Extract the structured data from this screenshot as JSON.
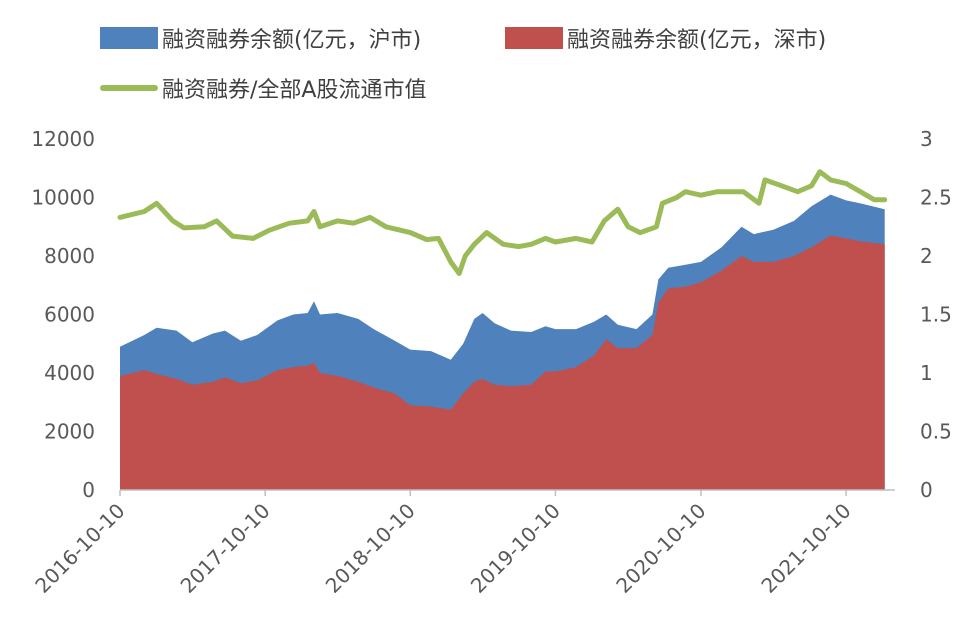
{
  "chart_data": {
    "type": "area",
    "x_labels": [
      "2016-10-10",
      "2017-10-10",
      "2018-10-10",
      "2019-10-10",
      "2020-10-10",
      "2021-10-10"
    ],
    "y_left": {
      "ticks": [
        "0",
        "2000",
        "4000",
        "6000",
        "8000",
        "10000",
        "12000"
      ],
      "min": 0,
      "max": 12000
    },
    "y_right": {
      "ticks": [
        "0",
        "0.5",
        "1",
        "1.5",
        "2",
        "2.5",
        "3"
      ],
      "min": 0,
      "max": 3
    },
    "x_range": [
      "2016-10-10",
      "2022-02-10"
    ],
    "series": [
      {
        "name": "融资融券余额(亿元，沪市)",
        "type": "area",
        "axis": "left",
        "color": "#4f81bd",
        "points": [
          [
            "2016-10-10",
            4900
          ],
          [
            "2016-12-10",
            5300
          ],
          [
            "2017-01-10",
            5550
          ],
          [
            "2017-03-01",
            5450
          ],
          [
            "2017-04-10",
            5050
          ],
          [
            "2017-06-01",
            5350
          ],
          [
            "2017-07-01",
            5450
          ],
          [
            "2017-08-10",
            5100
          ],
          [
            "2017-09-20",
            5300
          ],
          [
            "2017-11-10",
            5800
          ],
          [
            "2017-12-20",
            6000
          ],
          [
            "2018-01-25",
            6050
          ],
          [
            "2018-02-10",
            6450
          ],
          [
            "2018-02-25",
            6000
          ],
          [
            "2018-04-10",
            6050
          ],
          [
            "2018-06-01",
            5850
          ],
          [
            "2018-07-10",
            5500
          ],
          [
            "2018-09-01",
            5100
          ],
          [
            "2018-10-10",
            4800
          ],
          [
            "2018-12-01",
            4750
          ],
          [
            "2019-01-20",
            4450
          ],
          [
            "2019-02-20",
            5000
          ],
          [
            "2019-03-20",
            5850
          ],
          [
            "2019-04-10",
            6050
          ],
          [
            "2019-05-10",
            5700
          ],
          [
            "2019-06-20",
            5450
          ],
          [
            "2019-08-10",
            5400
          ],
          [
            "2019-09-15",
            5600
          ],
          [
            "2019-10-10",
            5500
          ],
          [
            "2019-12-01",
            5500
          ],
          [
            "2020-01-15",
            5750
          ],
          [
            "2020-02-15",
            6000
          ],
          [
            "2020-03-15",
            5650
          ],
          [
            "2020-05-01",
            5500
          ],
          [
            "2020-06-10",
            6000
          ],
          [
            "2020-06-25",
            7200
          ],
          [
            "2020-07-20",
            7600
          ],
          [
            "2020-09-01",
            7700
          ],
          [
            "2020-10-10",
            7800
          ],
          [
            "2020-12-01",
            8300
          ],
          [
            "2021-01-20",
            9000
          ],
          [
            "2021-02-20",
            8750
          ],
          [
            "2021-04-10",
            8900
          ],
          [
            "2021-06-01",
            9200
          ],
          [
            "2021-07-15",
            9700
          ],
          [
            "2021-09-01",
            10100
          ],
          [
            "2021-10-10",
            9900
          ],
          [
            "2021-11-15",
            9800
          ],
          [
            "2022-01-15",
            9600
          ]
        ]
      },
      {
        "name": "融资融券余额(亿元，深市)",
        "type": "area",
        "axis": "left",
        "color": "#c0504d",
        "points": [
          [
            "2016-10-10",
            3900
          ],
          [
            "2016-12-10",
            4100
          ],
          [
            "2017-01-15",
            3950
          ],
          [
            "2017-03-01",
            3800
          ],
          [
            "2017-04-10",
            3600
          ],
          [
            "2017-06-01",
            3700
          ],
          [
            "2017-07-01",
            3850
          ],
          [
            "2017-08-10",
            3650
          ],
          [
            "2017-09-20",
            3750
          ],
          [
            "2017-11-10",
            4100
          ],
          [
            "2017-12-20",
            4200
          ],
          [
            "2018-01-25",
            4250
          ],
          [
            "2018-02-10",
            4350
          ],
          [
            "2018-02-25",
            4000
          ],
          [
            "2018-04-10",
            3900
          ],
          [
            "2018-06-01",
            3700
          ],
          [
            "2018-07-10",
            3500
          ],
          [
            "2018-09-01",
            3300
          ],
          [
            "2018-10-10",
            2900
          ],
          [
            "2018-12-01",
            2850
          ],
          [
            "2019-01-20",
            2750
          ],
          [
            "2019-02-20",
            3300
          ],
          [
            "2019-03-20",
            3700
          ],
          [
            "2019-04-10",
            3800
          ],
          [
            "2019-05-10",
            3600
          ],
          [
            "2019-06-20",
            3550
          ],
          [
            "2019-08-10",
            3600
          ],
          [
            "2019-09-15",
            4050
          ],
          [
            "2019-10-10",
            4050
          ],
          [
            "2019-12-01",
            4200
          ],
          [
            "2020-01-15",
            4600
          ],
          [
            "2020-02-15",
            5150
          ],
          [
            "2020-03-15",
            4850
          ],
          [
            "2020-05-01",
            4850
          ],
          [
            "2020-06-10",
            5300
          ],
          [
            "2020-06-25",
            6400
          ],
          [
            "2020-07-20",
            6900
          ],
          [
            "2020-09-01",
            6950
          ],
          [
            "2020-10-10",
            7100
          ],
          [
            "2020-12-01",
            7500
          ],
          [
            "2021-01-20",
            8000
          ],
          [
            "2021-02-20",
            7800
          ],
          [
            "2021-04-10",
            7800
          ],
          [
            "2021-06-01",
            8000
          ],
          [
            "2021-07-15",
            8300
          ],
          [
            "2021-09-01",
            8700
          ],
          [
            "2021-10-10",
            8600
          ],
          [
            "2021-11-15",
            8500
          ],
          [
            "2022-01-15",
            8400
          ]
        ]
      },
      {
        "name": "融资融券/全部A股流通市值",
        "type": "line",
        "axis": "right",
        "color": "#9bbb59",
        "points": [
          [
            "2016-10-10",
            2.33
          ],
          [
            "2016-12-10",
            2.38
          ],
          [
            "2017-01-10",
            2.45
          ],
          [
            "2017-02-20",
            2.3
          ],
          [
            "2017-03-20",
            2.24
          ],
          [
            "2017-05-10",
            2.25
          ],
          [
            "2017-06-10",
            2.3
          ],
          [
            "2017-07-20",
            2.17
          ],
          [
            "2017-09-10",
            2.15
          ],
          [
            "2017-10-20",
            2.22
          ],
          [
            "2017-12-10",
            2.28
          ],
          [
            "2018-01-25",
            2.3
          ],
          [
            "2018-02-10",
            2.38
          ],
          [
            "2018-02-25",
            2.25
          ],
          [
            "2018-04-10",
            2.3
          ],
          [
            "2018-05-20",
            2.28
          ],
          [
            "2018-07-01",
            2.33
          ],
          [
            "2018-08-10",
            2.25
          ],
          [
            "2018-10-10",
            2.2
          ],
          [
            "2018-11-20",
            2.14
          ],
          [
            "2018-12-20",
            2.15
          ],
          [
            "2019-01-20",
            1.95
          ],
          [
            "2019-02-10",
            1.85
          ],
          [
            "2019-02-25",
            2.0
          ],
          [
            "2019-03-20",
            2.1
          ],
          [
            "2019-04-20",
            2.2
          ],
          [
            "2019-06-01",
            2.1
          ],
          [
            "2019-07-10",
            2.08
          ],
          [
            "2019-08-10",
            2.1
          ],
          [
            "2019-09-15",
            2.15
          ],
          [
            "2019-10-10",
            2.12
          ],
          [
            "2019-12-01",
            2.15
          ],
          [
            "2020-01-10",
            2.12
          ],
          [
            "2020-02-10",
            2.3
          ],
          [
            "2020-03-15",
            2.4
          ],
          [
            "2020-04-10",
            2.25
          ],
          [
            "2020-05-10",
            2.2
          ],
          [
            "2020-06-20",
            2.25
          ],
          [
            "2020-07-05",
            2.45
          ],
          [
            "2020-08-10",
            2.5
          ],
          [
            "2020-09-01",
            2.55
          ],
          [
            "2020-10-10",
            2.52
          ],
          [
            "2020-11-20",
            2.55
          ],
          [
            "2020-12-20",
            2.55
          ],
          [
            "2021-01-25",
            2.55
          ],
          [
            "2021-03-05",
            2.45
          ],
          [
            "2021-03-20",
            2.65
          ],
          [
            "2021-05-01",
            2.6
          ],
          [
            "2021-06-10",
            2.55
          ],
          [
            "2021-07-15",
            2.6
          ],
          [
            "2021-08-05",
            2.72
          ],
          [
            "2021-09-01",
            2.65
          ],
          [
            "2021-10-10",
            2.62
          ],
          [
            "2021-11-15",
            2.55
          ],
          [
            "2021-12-20",
            2.48
          ],
          [
            "2022-01-15",
            2.48
          ]
        ]
      }
    ],
    "legend": "top"
  }
}
